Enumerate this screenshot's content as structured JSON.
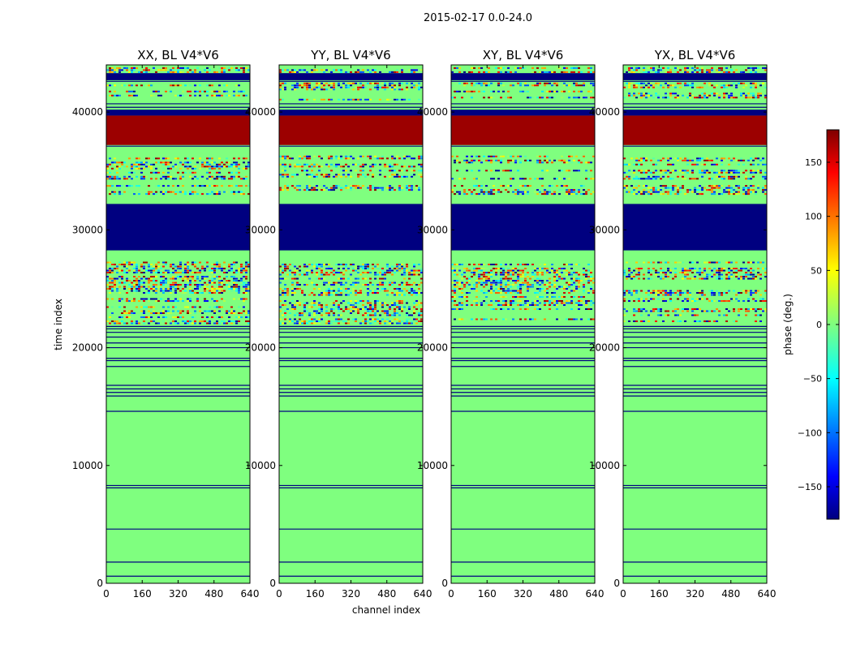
{
  "suptitle": "2015-02-17 0.0-24.0",
  "colors": {
    "background": "#7fff7f",
    "flag_line": "#000080",
    "black": "#000000"
  },
  "chart_data": {
    "type": "heatmap",
    "x_ticks": [
      0,
      160,
      320,
      480,
      640
    ],
    "y_ticks": [
      0,
      10000,
      20000,
      30000,
      40000
    ],
    "xlim": [
      0,
      640
    ],
    "ylim": [
      0,
      44000
    ],
    "xlabel": "channel index",
    "ylabel": "time index",
    "colorbar": {
      "label": "phase (deg.)",
      "ticks": [
        150,
        100,
        50,
        0,
        -50,
        -100,
        -150
      ],
      "range": [
        -180,
        180
      ],
      "colormap": "jet"
    },
    "panels": [
      {
        "title": "XX, BL V4*V6",
        "id": "XX"
      },
      {
        "title": "YY, BL V4*V6",
        "id": "YY"
      },
      {
        "title": "XY, BL V4*V6",
        "id": "XY"
      },
      {
        "title": "YX, BL V4*V6",
        "id": "YX"
      }
    ],
    "uniform_bands": [
      {
        "from": 37200,
        "to": 39700,
        "phase": 170,
        "panels": [
          "XX",
          "YY",
          "XY",
          "YX"
        ]
      },
      {
        "from": 28300,
        "to": 32200,
        "phase": -180,
        "panels": [
          "XX",
          "YY",
          "XY",
          "YX"
        ]
      },
      {
        "from": 39700,
        "to": 40200,
        "phase": -180,
        "panels": [
          "XX",
          "YY",
          "XY",
          "YX"
        ]
      },
      {
        "from": 42700,
        "to": 43300,
        "phase": -180,
        "panels": [
          "XX",
          "YY",
          "XY",
          "YX"
        ]
      }
    ],
    "noisy_bands": [
      {
        "from": 43300,
        "to": 43800,
        "panels": [
          "XX",
          "YY",
          "XY",
          "YX"
        ]
      },
      {
        "from": 41000,
        "to": 42500,
        "panels": [
          "XX",
          "YY",
          "XY",
          "YX"
        ]
      },
      {
        "from": 34300,
        "to": 36300,
        "panels": [
          "XX",
          "YY",
          "XY",
          "YX"
        ]
      },
      {
        "from": 33000,
        "to": 33800,
        "panels": [
          "XX",
          "YY",
          "XY",
          "YX"
        ]
      },
      {
        "from": 21800,
        "to": 27300,
        "panels": [
          "XX",
          "YY",
          "XY",
          "YX"
        ]
      }
    ],
    "flag_lines": [
      600,
      1800,
      4600,
      8100,
      8300,
      14600,
      15900,
      16200,
      16500,
      16800,
      18400,
      18900,
      19100,
      20000,
      20400,
      20900,
      21300,
      21600,
      21800,
      28300,
      37100,
      40400,
      40700,
      42600,
      43200
    ],
    "panel_x_tick_labels": [
      "0",
      "160",
      "320",
      "480",
      "640"
    ]
  }
}
